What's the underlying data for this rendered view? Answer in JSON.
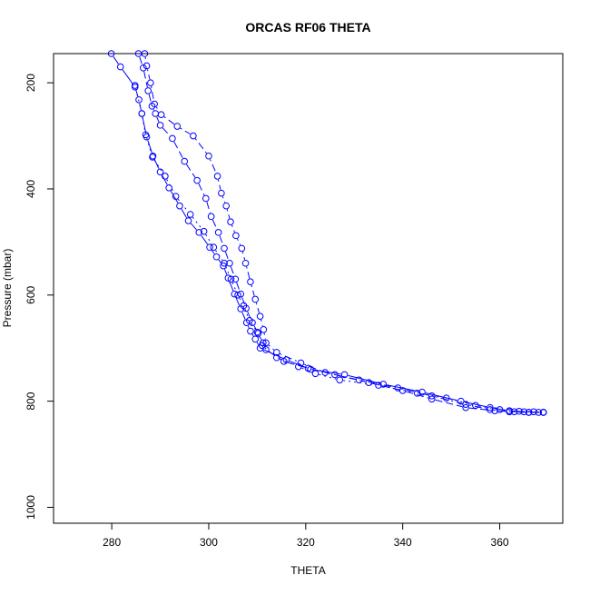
{
  "chart_data": {
    "type": "scatter",
    "title": "ORCAS RF06 THETA",
    "xlabel": "THETA",
    "ylabel": "Pressure (mbar)",
    "xlim": [
      268,
      373
    ],
    "ylim": [
      1030,
      145
    ],
    "x_ticks": [
      280,
      300,
      320,
      340,
      360
    ],
    "y_ticks": [
      200,
      400,
      600,
      800,
      1000
    ],
    "grid": false,
    "colors": {
      "series": "#0000ff",
      "axis": "#000000"
    },
    "series": [
      {
        "line_style": "solid",
        "points": [
          [
            279.9,
            145
          ],
          [
            281.8,
            170
          ],
          [
            284.8,
            208
          ],
          [
            285.6,
            232
          ],
          [
            286.2,
            258
          ],
          [
            287.2,
            302
          ],
          [
            288.5,
            338
          ],
          [
            290.0,
            368
          ],
          [
            291.8,
            398
          ],
          [
            294.0,
            432
          ],
          [
            295.8,
            460
          ],
          [
            298.0,
            482
          ],
          [
            300.2,
            510
          ],
          [
            301.6,
            528
          ],
          [
            303.0,
            545
          ],
          [
            304.0,
            568
          ],
          [
            305.3,
            598
          ],
          [
            306.6,
            626
          ],
          [
            307.8,
            652
          ],
          [
            308.6,
            668
          ],
          [
            309.6,
            683
          ],
          [
            310.6,
            700
          ],
          [
            316.0,
            722
          ],
          [
            321.0,
            740
          ],
          [
            328.0,
            750
          ],
          [
            336.0,
            768
          ],
          [
            344.0,
            783
          ],
          [
            352.0,
            800
          ],
          [
            358.0,
            812
          ],
          [
            362.0,
            818
          ],
          [
            365.0,
            820
          ],
          [
            368.0,
            821
          ]
        ]
      },
      {
        "line_style": "dashed",
        "points": [
          [
            285.5,
            145
          ],
          [
            286.5,
            172
          ],
          [
            287.5,
            215
          ],
          [
            288.3,
            244
          ],
          [
            289.0,
            258
          ],
          [
            290.0,
            280
          ],
          [
            292.5,
            305
          ],
          [
            295.0,
            348
          ],
          [
            297.6,
            384
          ],
          [
            299.4,
            418
          ],
          [
            300.5,
            452
          ],
          [
            302.0,
            482
          ],
          [
            303.2,
            512
          ],
          [
            304.3,
            540
          ],
          [
            305.5,
            570
          ],
          [
            306.6,
            598
          ],
          [
            307.7,
            625
          ],
          [
            309.0,
            652
          ],
          [
            310.2,
            672
          ],
          [
            311.2,
            690
          ],
          [
            311.8,
            703
          ],
          [
            315.5,
            725
          ],
          [
            320.5,
            738
          ],
          [
            326.0,
            750
          ],
          [
            333.0,
            765
          ],
          [
            340.0,
            780
          ],
          [
            346.0,
            796
          ],
          [
            353.0,
            812
          ],
          [
            359.0,
            818
          ],
          [
            363.0,
            820
          ],
          [
            366.0,
            821
          ],
          [
            369.0,
            821
          ]
        ]
      },
      {
        "line_style": "dotdash",
        "points": [
          [
            286.8,
            145
          ],
          [
            287.2,
            168
          ],
          [
            288.0,
            200
          ],
          [
            288.8,
            240
          ],
          [
            290.2,
            260
          ],
          [
            293.5,
            282
          ],
          [
            296.8,
            300
          ],
          [
            300.0,
            338
          ],
          [
            301.8,
            376
          ],
          [
            302.6,
            408
          ],
          [
            303.6,
            432
          ],
          [
            304.5,
            462
          ],
          [
            305.6,
            488
          ],
          [
            306.8,
            512
          ],
          [
            307.6,
            540
          ],
          [
            308.6,
            575
          ],
          [
            309.6,
            608
          ],
          [
            310.6,
            640
          ],
          [
            311.3,
            665
          ],
          [
            311.8,
            690
          ],
          [
            314.0,
            708
          ],
          [
            319.0,
            728
          ],
          [
            324.0,
            746
          ],
          [
            331.0,
            760
          ],
          [
            339.0,
            775
          ],
          [
            346.0,
            790
          ],
          [
            353.0,
            806
          ],
          [
            358.0,
            816
          ],
          [
            362.0,
            820
          ],
          [
            366.0,
            821
          ],
          [
            369.0,
            821
          ]
        ]
      },
      {
        "line_style": "dotted",
        "points": [
          [
            284.8,
            205
          ],
          [
            286.2,
            258
          ],
          [
            287.0,
            298
          ],
          [
            288.4,
            340
          ],
          [
            291.0,
            376
          ],
          [
            293.2,
            414
          ],
          [
            296.2,
            448
          ],
          [
            299.0,
            480
          ],
          [
            301.0,
            510
          ],
          [
            303.2,
            540
          ],
          [
            304.6,
            570
          ],
          [
            306.0,
            600
          ],
          [
            307.2,
            620
          ],
          [
            308.4,
            648
          ],
          [
            310.0,
            670
          ],
          [
            311.0,
            695
          ],
          [
            314.0,
            718
          ],
          [
            318.5,
            735
          ],
          [
            322.0,
            748
          ],
          [
            327.0,
            760
          ],
          [
            335.0,
            770
          ],
          [
            343.0,
            785
          ],
          [
            349.0,
            794
          ],
          [
            355.0,
            808
          ],
          [
            360.0,
            816
          ],
          [
            364.0,
            819
          ],
          [
            367.0,
            820
          ],
          [
            369.0,
            821
          ]
        ]
      }
    ]
  }
}
